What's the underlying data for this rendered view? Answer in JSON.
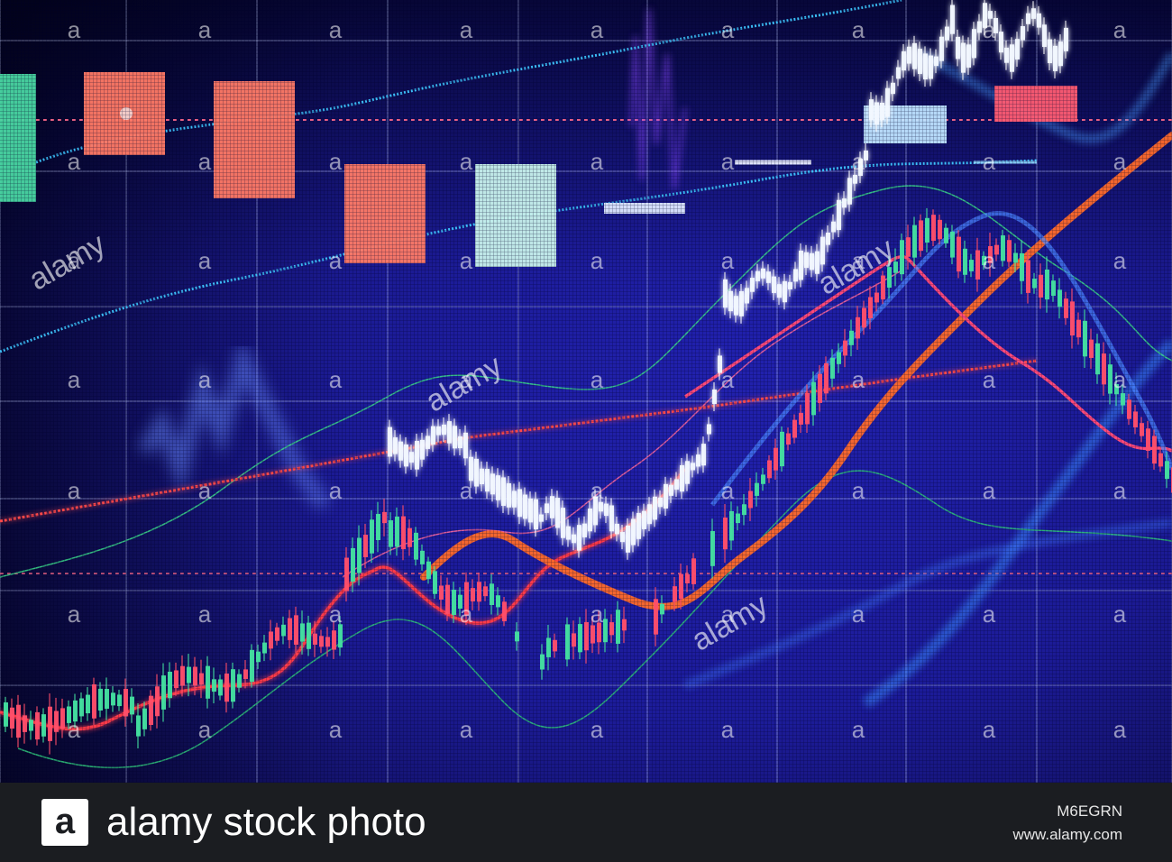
{
  "watermark": {
    "brand": "alamy",
    "letter": "a"
  },
  "footer": {
    "logo_letter": "a",
    "brand_text": "alamy stock photo",
    "image_id": "M6EGRN",
    "site_url": "www.alamy.com"
  },
  "colors": {
    "screen_blue": "#1c1c9e",
    "screen_dark": "#0c0a3a",
    "candle_green": "#49d6a3",
    "candle_red": "#ff5c62",
    "candle_white": "#e8f4ff",
    "orange_line": "#ff6a2a",
    "cyan_line": "#3ec7ff",
    "footer_bg": "#1b1d21"
  }
}
